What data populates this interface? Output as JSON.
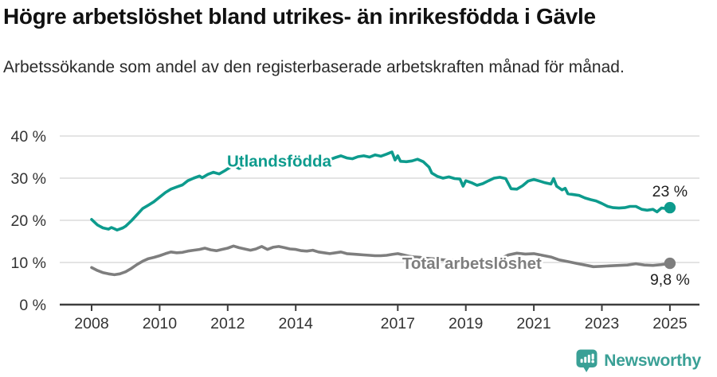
{
  "header": {
    "title": "Högre arbetslöshet bland utrikes- än inrikesfödda i Gävle",
    "subtitle": "Arbetssökande som andel av den registerbaserade arbetskraften månad för månad."
  },
  "footer": {
    "brand": "Newsworthy",
    "logo_icon": "bar-chart-speech-bubble-icon",
    "brand_color": "#3aa096"
  },
  "chart_data": {
    "type": "line",
    "title": "Högre arbetslöshet bland utrikes- än inrikesfödda i Gävle",
    "unit": "%",
    "xlabel": "",
    "ylabel": "",
    "ylim": [
      0,
      40
    ],
    "grid": true,
    "ytick_values": [
      40,
      30,
      20,
      10,
      0
    ],
    "ytick_labels": [
      "40 %",
      "30 %",
      "20 %",
      "10 %",
      "0 %"
    ],
    "xtick_values": [
      2008,
      2010,
      2012,
      2014,
      2017,
      2019,
      2021,
      2023,
      2025
    ],
    "xtick_labels": [
      "2008",
      "2010",
      "2012",
      "2014",
      "2017",
      "2019",
      "2021",
      "2023",
      "2025"
    ],
    "colors": {
      "utlandsfodda": "#0d9b8d",
      "total": "#7e7e7e",
      "gridline": "#dbdbdb",
      "axis": "#3d3d3d"
    },
    "series": [
      {
        "id": "utlandsfodda",
        "name": "Utlandsfödda",
        "color": "#0d9b8d",
        "end_label": "23 %",
        "end_label_position": "above",
        "label": {
          "x": 2011.98,
          "y": 32.7
        },
        "x": [
          2008.0,
          2008.17,
          2008.33,
          2008.5,
          2008.58,
          2008.67,
          2008.75,
          2008.92,
          2009.0,
          2009.17,
          2009.33,
          2009.5,
          2009.67,
          2009.83,
          2010.0,
          2010.17,
          2010.33,
          2010.5,
          2010.67,
          2010.83,
          2011.0,
          2011.17,
          2011.25,
          2011.42,
          2011.58,
          2011.75,
          2011.92,
          2012.0,
          2012.17,
          2012.33,
          2012.5,
          2012.67,
          2012.83,
          2013.0,
          2013.17,
          2013.25,
          2013.42,
          2013.58,
          2013.75,
          2013.92,
          2014.0,
          2014.17,
          2014.33,
          2014.5,
          2014.67,
          2014.83,
          2015.0,
          2015.17,
          2015.33,
          2015.5,
          2015.67,
          2015.83,
          2016.0,
          2016.17,
          2016.33,
          2016.5,
          2016.67,
          2016.83,
          2016.92,
          2017.0,
          2017.08,
          2017.25,
          2017.42,
          2017.58,
          2017.75,
          2017.92,
          2018.0,
          2018.17,
          2018.33,
          2018.5,
          2018.67,
          2018.83,
          2018.92,
          2019.0,
          2019.17,
          2019.33,
          2019.5,
          2019.67,
          2019.83,
          2020.0,
          2020.17,
          2020.33,
          2020.5,
          2020.67,
          2020.83,
          2021.0,
          2021.17,
          2021.33,
          2021.5,
          2021.58,
          2021.67,
          2021.83,
          2021.92,
          2022.0,
          2022.17,
          2022.33,
          2022.5,
          2022.67,
          2022.83,
          2023.0,
          2023.17,
          2023.33,
          2023.5,
          2023.67,
          2023.83,
          2024.0,
          2024.17,
          2024.33,
          2024.5,
          2024.62,
          2024.75,
          2024.92,
          2025.0
        ],
        "values": [
          20.2,
          18.9,
          18.2,
          17.9,
          18.3,
          18.0,
          17.7,
          18.2,
          18.6,
          19.9,
          21.3,
          22.8,
          23.6,
          24.4,
          25.5,
          26.6,
          27.4,
          27.9,
          28.4,
          29.4,
          30.0,
          30.5,
          30.1,
          30.9,
          31.4,
          31.0,
          31.8,
          32.2,
          33.0,
          32.3,
          32.9,
          33.4,
          32.8,
          33.5,
          34.1,
          33.2,
          33.7,
          33.1,
          33.6,
          33.3,
          34.2,
          33.5,
          33.3,
          33.9,
          34.4,
          33.9,
          34.4,
          34.9,
          35.3,
          34.8,
          34.6,
          35.1,
          35.3,
          35.0,
          35.5,
          35.2,
          35.7,
          36.2,
          34.3,
          35.3,
          34.0,
          33.9,
          34.1,
          34.5,
          33.9,
          32.6,
          31.2,
          30.4,
          30.0,
          30.3,
          29.9,
          29.8,
          28.1,
          29.4,
          28.9,
          28.3,
          28.7,
          29.4,
          30.0,
          30.2,
          29.9,
          27.5,
          27.4,
          28.2,
          29.3,
          29.7,
          29.3,
          28.9,
          28.6,
          29.9,
          28.1,
          27.2,
          27.6,
          26.3,
          26.1,
          25.9,
          25.3,
          24.9,
          24.6,
          24.0,
          23.3,
          23.0,
          22.9,
          23.0,
          23.3,
          23.3,
          22.6,
          22.4,
          22.6,
          22.0,
          22.9,
          22.8,
          23.0
        ]
      },
      {
        "id": "total-arbetsloshet",
        "name": "Total arbetslöshet",
        "color": "#7e7e7e",
        "end_label": "9,8 %",
        "end_label_position": "below",
        "label": {
          "x": 2017.13,
          "y": 8.5
        },
        "x": [
          2008.0,
          2008.17,
          2008.33,
          2008.5,
          2008.67,
          2008.83,
          2009.0,
          2009.17,
          2009.33,
          2009.5,
          2009.67,
          2009.83,
          2010.0,
          2010.17,
          2010.33,
          2010.5,
          2010.67,
          2010.83,
          2011.0,
          2011.17,
          2011.33,
          2011.5,
          2011.67,
          2011.83,
          2012.0,
          2012.17,
          2012.33,
          2012.5,
          2012.67,
          2012.83,
          2013.0,
          2013.17,
          2013.33,
          2013.5,
          2013.67,
          2013.83,
          2014.0,
          2014.17,
          2014.33,
          2014.5,
          2014.67,
          2014.83,
          2015.0,
          2015.17,
          2015.33,
          2015.5,
          2015.67,
          2015.83,
          2016.0,
          2016.17,
          2016.33,
          2016.5,
          2016.67,
          2016.83,
          2017.0,
          2017.17,
          2017.33,
          2017.5,
          2017.67,
          2017.83,
          2018.0,
          2018.25,
          2018.5,
          2018.75,
          2019.0,
          2019.25,
          2019.5,
          2019.75,
          2020.0,
          2020.25,
          2020.5,
          2020.75,
          2021.0,
          2021.25,
          2021.5,
          2021.75,
          2022.0,
          2022.25,
          2022.5,
          2022.75,
          2023.0,
          2023.25,
          2023.5,
          2023.75,
          2024.0,
          2024.25,
          2024.5,
          2024.75,
          2025.0
        ],
        "values": [
          8.8,
          8.1,
          7.6,
          7.3,
          7.1,
          7.3,
          7.8,
          8.6,
          9.5,
          10.3,
          10.9,
          11.2,
          11.6,
          12.1,
          12.5,
          12.3,
          12.4,
          12.7,
          12.9,
          13.1,
          13.4,
          13.0,
          12.8,
          13.1,
          13.4,
          13.9,
          13.5,
          13.2,
          12.9,
          13.2,
          13.8,
          13.1,
          13.6,
          13.8,
          13.5,
          13.2,
          13.1,
          12.8,
          12.7,
          12.9,
          12.5,
          12.3,
          12.1,
          12.3,
          12.5,
          12.1,
          12.0,
          11.9,
          11.8,
          11.7,
          11.6,
          11.6,
          11.7,
          11.9,
          12.1,
          11.8,
          11.5,
          11.3,
          11.2,
          11.0,
          10.9,
          10.7,
          10.5,
          10.4,
          10.3,
          10.2,
          10.3,
          10.5,
          10.8,
          11.8,
          12.2,
          12.0,
          12.1,
          11.7,
          11.3,
          10.6,
          10.2,
          9.8,
          9.4,
          9.0,
          9.1,
          9.2,
          9.3,
          9.4,
          9.7,
          9.4,
          9.3,
          9.5,
          9.8
        ]
      }
    ]
  }
}
